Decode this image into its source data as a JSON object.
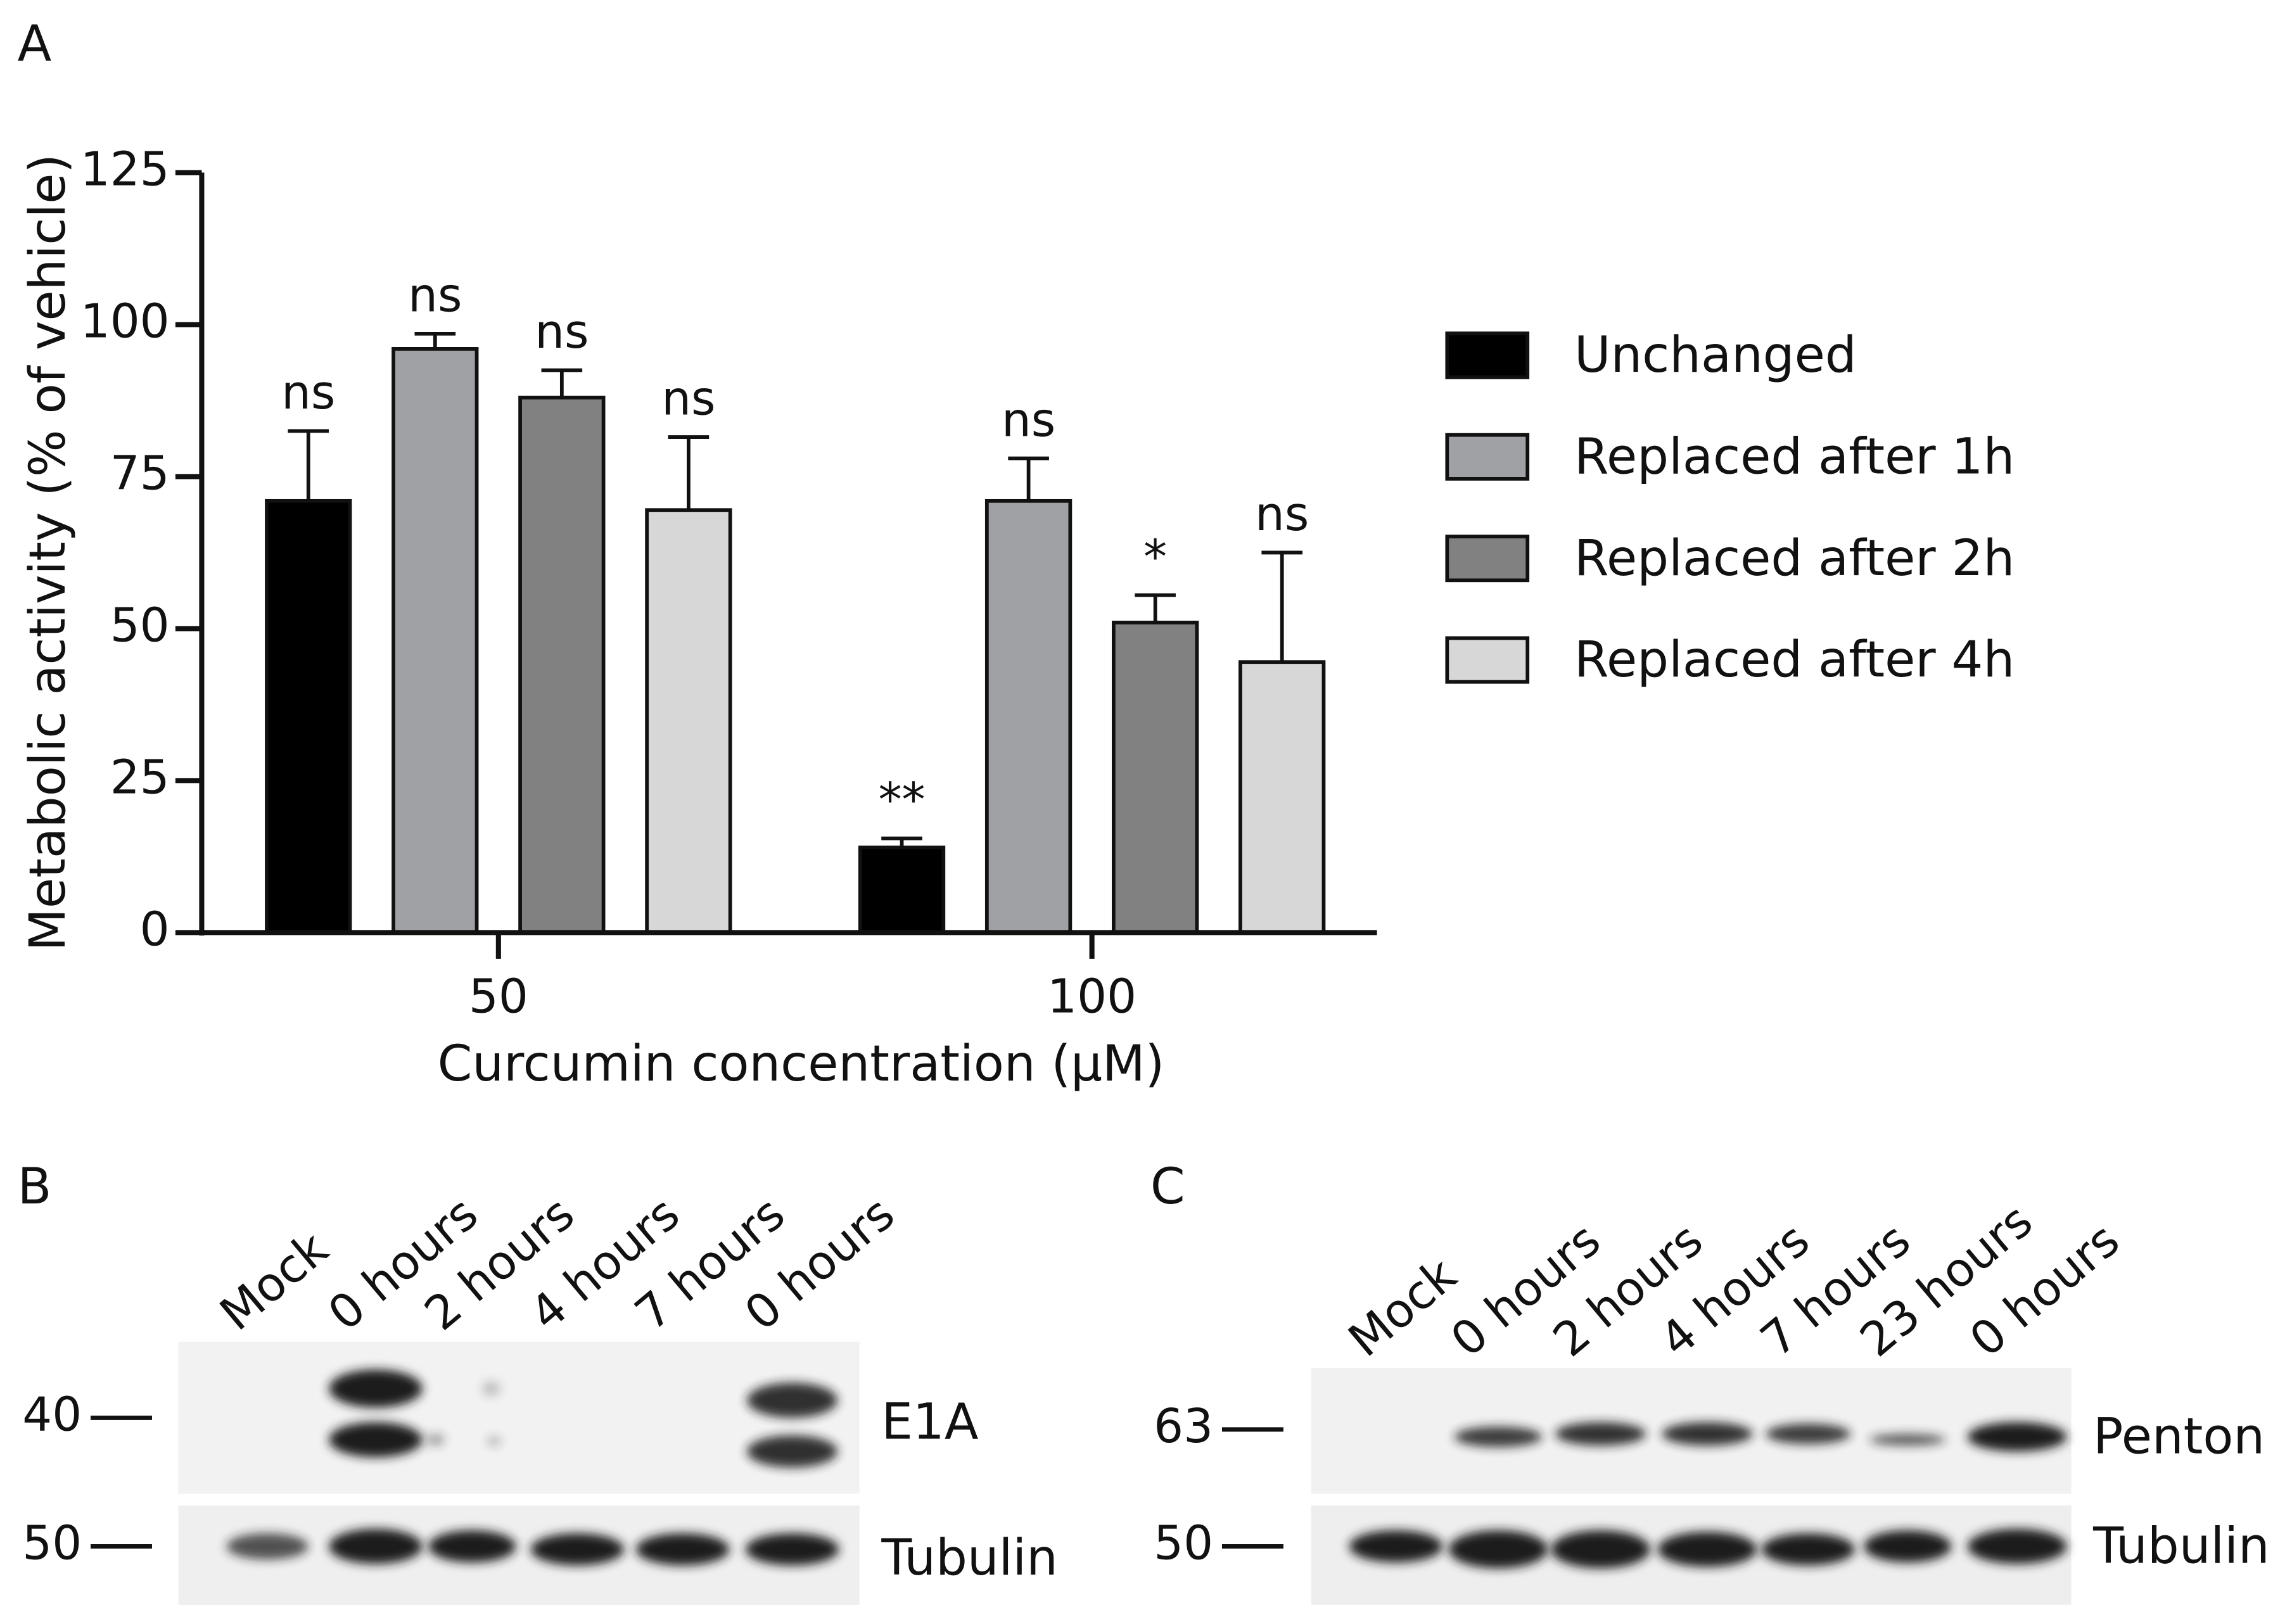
{
  "panel_labels": [
    "A",
    "B",
    "C"
  ],
  "chart_data": {
    "type": "bar",
    "y_label": "Metabolic activity (% of vehicle)",
    "x_label": "Curcumin concentration (μM)",
    "categories": [
      "50",
      "100"
    ],
    "ylim": [
      0,
      125
    ],
    "yticks": [
      0,
      25,
      50,
      75,
      100,
      125
    ],
    "series": [
      {
        "name": "Unchanged",
        "color": "#000000",
        "values": [
          71,
          14
        ],
        "errors": [
          11.5,
          1.5
        ],
        "annotations": [
          "ns",
          "**"
        ]
      },
      {
        "name": "Replaced after 1h",
        "color": "#a0a1a5",
        "values": [
          96,
          71
        ],
        "errors": [
          2.5,
          7
        ],
        "annotations": [
          "ns",
          "ns"
        ]
      },
      {
        "name": "Replaced after 2h",
        "color": "#808180",
        "values": [
          88,
          51
        ],
        "errors": [
          4.5,
          4.5
        ],
        "annotations": [
          "ns",
          "*"
        ]
      },
      {
        "name": "Replaced after 4h",
        "color": "#d6d7d6",
        "values": [
          69.5,
          44.5
        ],
        "errors": [
          12,
          18
        ],
        "annotations": [
          "ns",
          "ns"
        ]
      }
    ]
  },
  "blots": {
    "B": {
      "lanes": [
        "Mock",
        "0 hours",
        "2 hours",
        "4 hours",
        "7 hours",
        "0 hours"
      ],
      "markers": [
        40,
        50
      ],
      "targets": [
        "E1A",
        "Tubulin"
      ]
    },
    "C": {
      "lanes": [
        "Mock",
        "0 hours",
        "2 hours",
        "4 hours",
        "7 hours",
        "23 hours",
        "0 hours"
      ],
      "markers": [
        63,
        50
      ],
      "targets": [
        "Penton",
        "Tubulin"
      ]
    }
  }
}
